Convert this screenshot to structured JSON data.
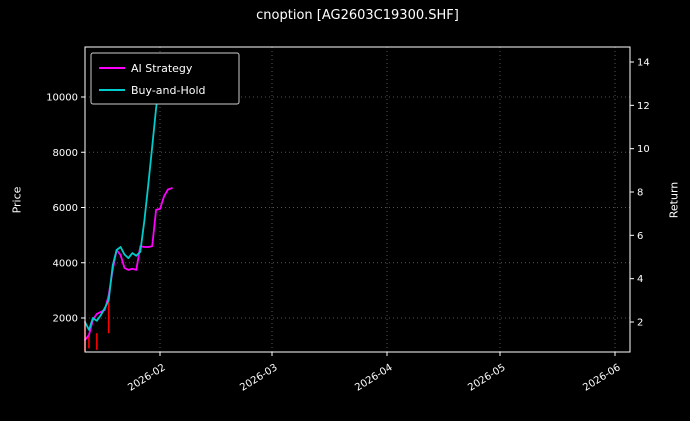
{
  "title": "cnoption [AG2603C19300.SHF]",
  "chart_data": {
    "type": "line",
    "title": "cnoption [AG2603C19300.SHF]",
    "ylabel_left": "Price",
    "ylabel_right": "Return",
    "background": "#000000",
    "grid": "dotted",
    "x_tick_labels": [
      "2026-02",
      "2026-03",
      "2026-04",
      "2026-05",
      "2026-06"
    ],
    "y_left_ticks": [
      2000,
      4000,
      6000,
      8000,
      10000
    ],
    "y_right_ticks": [
      2,
      4,
      6,
      8,
      10,
      12,
      14
    ],
    "y_left_range": [
      700,
      11800
    ],
    "x_range_dates": [
      "2026-01-13",
      "2026-06-10"
    ],
    "legend": {
      "position": "upper-left",
      "entries": [
        {
          "label": "AI Strategy",
          "color": "#ff00ff"
        },
        {
          "label": "Buy-and-Hold",
          "color": "#00cccc"
        }
      ]
    },
    "series": [
      {
        "name": "AI Strategy",
        "color": "#ff00ff",
        "points": [
          [
            0,
            1200
          ],
          [
            1,
            1390
          ],
          [
            2,
            1930
          ],
          [
            3,
            2150
          ],
          [
            4,
            2220
          ],
          [
            5,
            2290
          ],
          [
            6,
            2830
          ],
          [
            7,
            3740
          ],
          [
            8,
            4460
          ],
          [
            9,
            4280
          ],
          [
            10,
            3810
          ],
          [
            11,
            3740
          ],
          [
            12,
            3780
          ],
          [
            13,
            3740
          ],
          [
            14,
            4600
          ],
          [
            15,
            4570
          ],
          [
            16,
            4570
          ],
          [
            17,
            4600
          ],
          [
            18,
            5920
          ],
          [
            19,
            5950
          ],
          [
            20,
            6400
          ],
          [
            21,
            6650
          ],
          [
            22,
            6700
          ]
        ]
      },
      {
        "name": "Buy-and-Hold",
        "color": "#00cccc",
        "points": [
          [
            0,
            1850
          ],
          [
            1,
            1570
          ],
          [
            2,
            2000
          ],
          [
            3,
            1900
          ],
          [
            4,
            2100
          ],
          [
            5,
            2360
          ],
          [
            6,
            2650
          ],
          [
            7,
            3900
          ],
          [
            8,
            4460
          ],
          [
            9,
            4570
          ],
          [
            10,
            4300
          ],
          [
            11,
            4170
          ],
          [
            12,
            4350
          ],
          [
            13,
            4250
          ],
          [
            14,
            4400
          ],
          [
            15,
            5500
          ],
          [
            16,
            6800
          ],
          [
            17,
            8200
          ],
          [
            18,
            9600
          ],
          [
            19,
            10700
          ],
          [
            20,
            11150
          ],
          [
            21,
            11250
          ]
        ]
      }
    ],
    "price_bars": {
      "name": "underlying price bars",
      "color": "#ff0000",
      "bars": [
        [
          0,
          800,
          1900
        ],
        [
          1,
          900,
          1350
        ],
        [
          3,
          850,
          1450
        ],
        [
          6,
          1450,
          2600
        ]
      ]
    }
  }
}
